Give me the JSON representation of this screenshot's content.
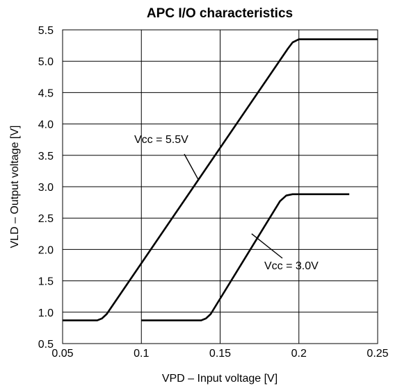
{
  "chart_data": {
    "type": "line",
    "title": "APC I/O characteristics",
    "xlabel": "VPD – Input voltage [V]",
    "ylabel": "VLD – Output voltage [V]",
    "xlim": [
      0.05,
      0.25
    ],
    "ylim": [
      0.5,
      5.5
    ],
    "xticks": [
      "0.05",
      "0.1",
      "0.15",
      "0.2",
      "0.25"
    ],
    "yticks": [
      "0.5",
      "1.0",
      "1.5",
      "2.0",
      "2.5",
      "3.0",
      "3.5",
      "4.0",
      "4.5",
      "5.0",
      "5.5"
    ],
    "grid": true,
    "series": [
      {
        "name": "Vcc = 5.5V",
        "x": [
          0.05,
          0.072,
          0.075,
          0.078,
          0.193,
          0.196,
          0.2,
          0.25
        ],
        "y": [
          0.87,
          0.87,
          0.9,
          0.97,
          5.2,
          5.3,
          5.35,
          5.35
        ]
      },
      {
        "name": "Vcc = 3.0V",
        "x": [
          0.1,
          0.138,
          0.141,
          0.144,
          0.188,
          0.192,
          0.196,
          0.232
        ],
        "y": [
          0.87,
          0.87,
          0.9,
          0.97,
          2.77,
          2.86,
          2.88,
          2.88
        ]
      }
    ],
    "annotations": [
      {
        "text": "Vcc = 5.5V",
        "series": 0,
        "pointer_x": 0.136,
        "pointer_y": 3.12
      },
      {
        "text": "Vcc = 3.0V",
        "series": 1,
        "pointer_x": 0.17,
        "pointer_y": 2.25
      }
    ]
  }
}
